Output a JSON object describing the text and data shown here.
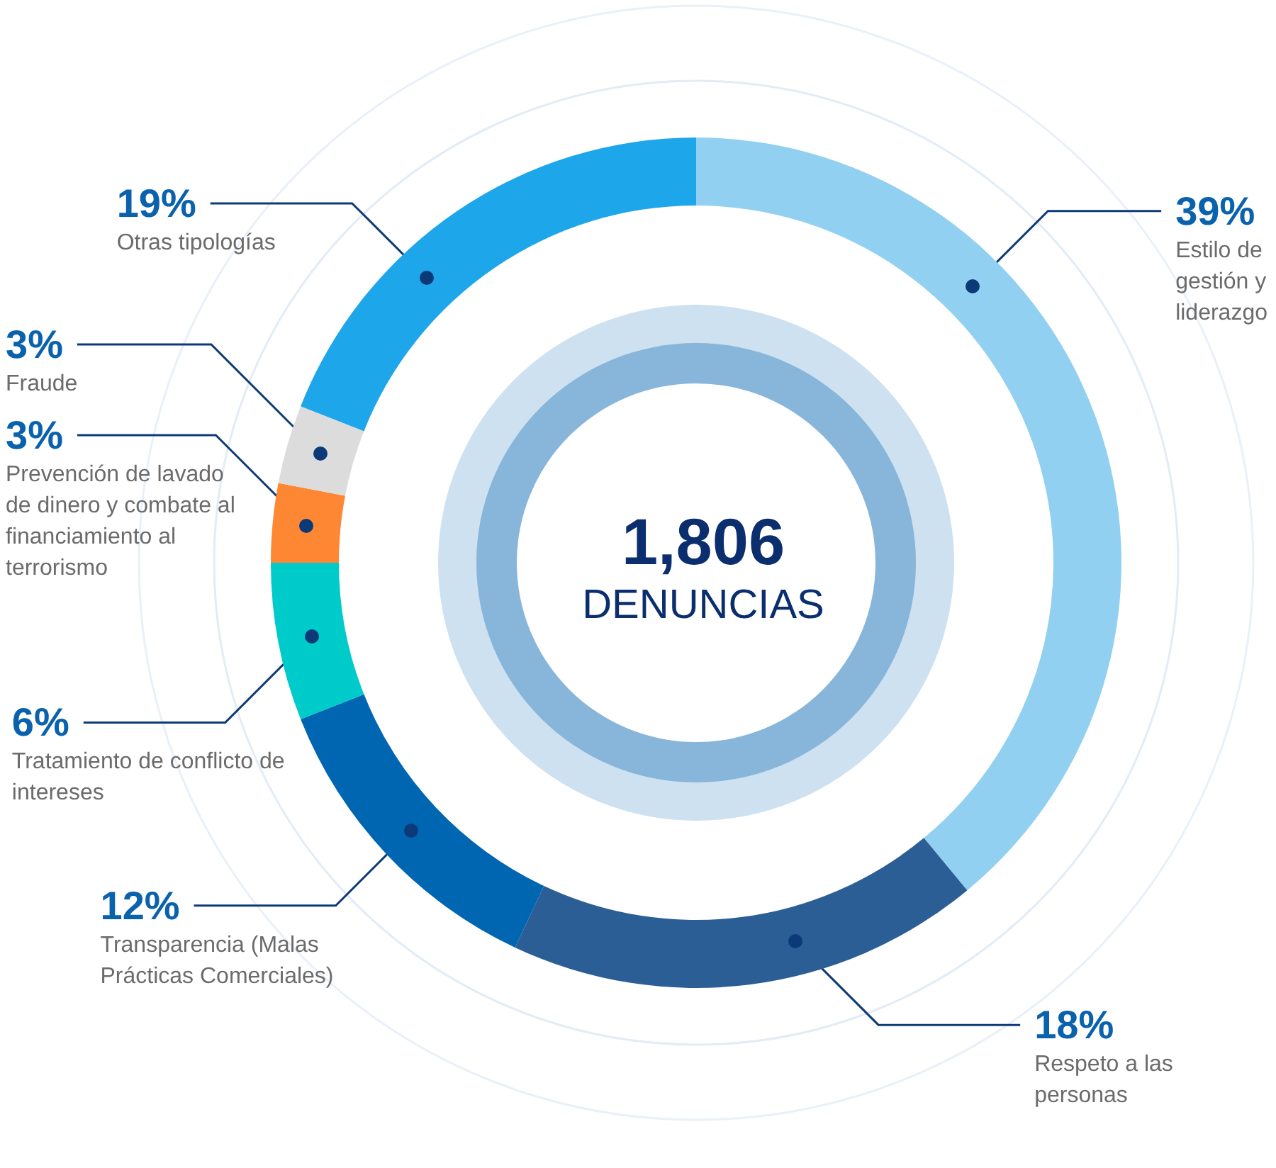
{
  "chart_data": {
    "type": "donut",
    "title": "1,806",
    "subtitle": "DENUNCIAS",
    "categories": [
      "Estilo de gestión y liderazgo",
      "Respeto a las personas",
      "Transparencia (Malas Prácticas Comerciales)",
      "Tratamiento de conflicto de intereses",
      "Prevención de lavado de dinero y combate al financiamiento al terrorismo",
      "Fraude",
      "Otras tipologías"
    ],
    "values": [
      39,
      18,
      12,
      6,
      3,
      3,
      19
    ],
    "value_labels": [
      "39%",
      "18%",
      "12%",
      "6%",
      "3%",
      "3%",
      "19%"
    ],
    "colors": [
      "#92d0f1",
      "#2c5e96",
      "#0066b2",
      "#00cbcb",
      "#fe8734",
      "#dcdcdc",
      "#1da6e9"
    ]
  }
}
